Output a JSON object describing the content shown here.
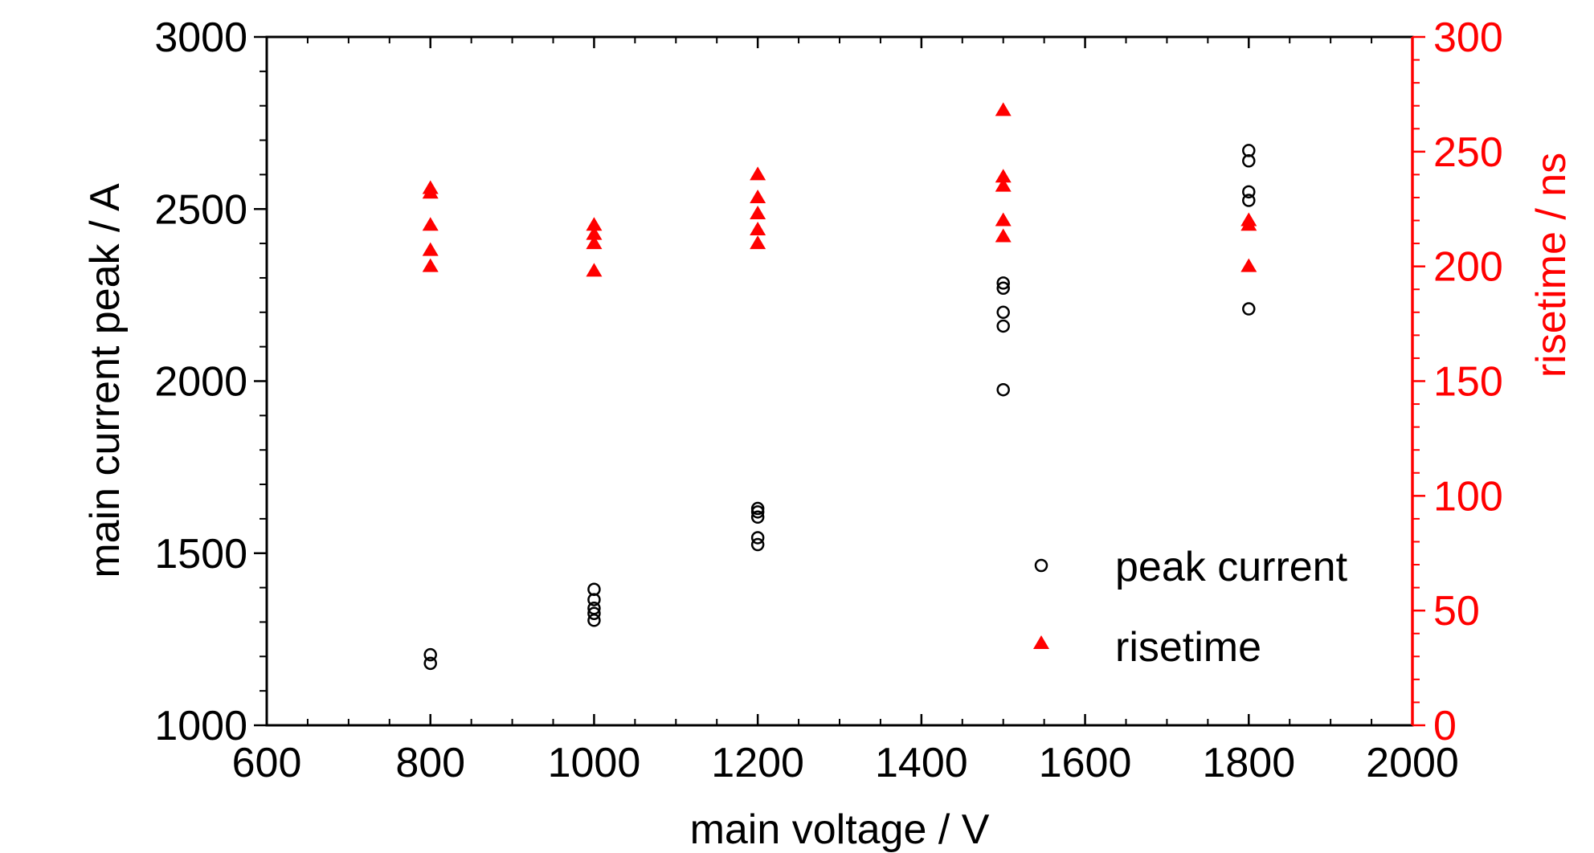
{
  "chart_data": {
    "type": "scatter",
    "xlabel": "main voltage / V",
    "ylabel_left": "main current peak / A",
    "ylabel_right": "risetime / ns",
    "xlim": [
      600,
      2000
    ],
    "ylim_left": [
      1000,
      3000
    ],
    "ylim_right": [
      0,
      300
    ],
    "x_ticks": [
      600,
      800,
      1000,
      1200,
      1400,
      1600,
      1800,
      2000
    ],
    "y_left_ticks": [
      1000,
      1500,
      2000,
      2500,
      3000
    ],
    "y_right_ticks": [
      0,
      50,
      100,
      150,
      200,
      250,
      300
    ],
    "grid": false,
    "legend_position": "bottom-right",
    "colors": {
      "peak_current": "#000000",
      "risetime": "#ff0000",
      "right_axis": "#ff0000"
    },
    "series": [
      {
        "name": "peak current",
        "axis": "left",
        "marker": "open-circle",
        "points": [
          [
            800,
            1180
          ],
          [
            800,
            1205
          ],
          [
            1000,
            1305
          ],
          [
            1000,
            1325
          ],
          [
            1000,
            1340
          ],
          [
            1000,
            1365
          ],
          [
            1000,
            1395
          ],
          [
            1200,
            1525
          ],
          [
            1200,
            1545
          ],
          [
            1200,
            1605
          ],
          [
            1200,
            1620
          ],
          [
            1200,
            1630
          ],
          [
            1500,
            1975
          ],
          [
            1500,
            2160
          ],
          [
            1500,
            2200
          ],
          [
            1500,
            2270
          ],
          [
            1500,
            2285
          ],
          [
            1800,
            2210
          ],
          [
            1800,
            2525
          ],
          [
            1800,
            2550
          ],
          [
            1800,
            2640
          ],
          [
            1800,
            2670
          ]
        ]
      },
      {
        "name": "risetime",
        "axis": "right",
        "marker": "filled-triangle",
        "points": [
          [
            800,
            200
          ],
          [
            800,
            207
          ],
          [
            800,
            218
          ],
          [
            800,
            232
          ],
          [
            800,
            234
          ],
          [
            1000,
            198
          ],
          [
            1000,
            210
          ],
          [
            1000,
            214
          ],
          [
            1000,
            218
          ],
          [
            1200,
            210
          ],
          [
            1200,
            216
          ],
          [
            1200,
            223
          ],
          [
            1200,
            230
          ],
          [
            1200,
            240
          ],
          [
            1500,
            213
          ],
          [
            1500,
            220
          ],
          [
            1500,
            235
          ],
          [
            1500,
            239
          ],
          [
            1500,
            268
          ],
          [
            1800,
            200
          ],
          [
            1800,
            218
          ],
          [
            1800,
            220
          ]
        ]
      }
    ]
  }
}
